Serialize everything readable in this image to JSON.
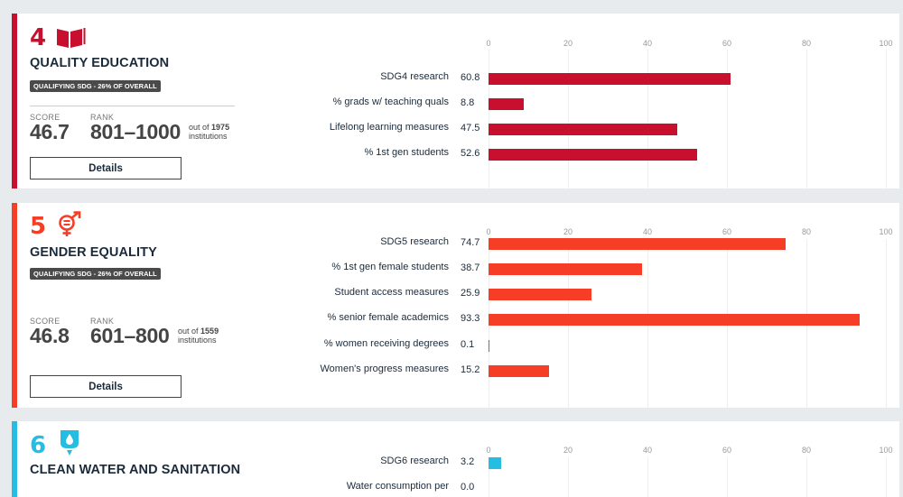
{
  "cards": [
    {
      "number": "4",
      "title": "QUALITY EDUCATION",
      "qualifying": "QUALIFYING SDG - 26% OF OVERALL",
      "score_label": "SCORE",
      "score": "46.7",
      "rank_label": "RANK",
      "rank": "801–1000",
      "out_of_prefix": "out of",
      "out_of_count": "1975",
      "out_of_suffix": "institutions",
      "details": "Details",
      "color": "#c8102e",
      "icon": "open-book-icon"
    },
    {
      "number": "5",
      "title": "GENDER EQUALITY",
      "qualifying": "QUALIFYING SDG - 26% OF OVERALL",
      "score_label": "SCORE",
      "score": "46.8",
      "rank_label": "RANK",
      "rank": "601–800",
      "out_of_prefix": "out of",
      "out_of_count": "1559",
      "out_of_suffix": "institutions",
      "details": "Details",
      "color": "#f53e25",
      "icon": "gender-equality-icon"
    },
    {
      "number": "6",
      "title": "CLEAN WATER AND SANITATION",
      "color": "#26bde2",
      "icon": "water-drop-icon"
    }
  ],
  "chart_data": [
    {
      "type": "bar",
      "orientation": "horizontal",
      "xlim": [
        0,
        100
      ],
      "ticks": [
        0,
        20,
        40,
        60,
        80,
        100
      ],
      "color": "#c8102e",
      "categories": [
        "SDG4 research",
        "% grads w/ teaching quals",
        "Lifelong learning measures",
        "% 1st gen students"
      ],
      "values": [
        60.8,
        8.8,
        47.5,
        52.6
      ],
      "value_labels": [
        "60.8",
        "8.8",
        "47.5",
        "52.6"
      ]
    },
    {
      "type": "bar",
      "orientation": "horizontal",
      "xlim": [
        0,
        100
      ],
      "ticks": [
        0,
        20,
        40,
        60,
        80,
        100
      ],
      "color": "#f53e25",
      "categories": [
        "SDG5 research",
        "% 1st gen female students",
        "Student access measures",
        "% senior female academics",
        "% women receiving degrees",
        "Women's progress measures"
      ],
      "values": [
        74.7,
        38.7,
        25.9,
        93.3,
        0.1,
        15.2
      ],
      "value_labels": [
        "74.7",
        "38.7",
        "25.9",
        "93.3",
        "0.1",
        "15.2"
      ]
    },
    {
      "type": "bar",
      "orientation": "horizontal",
      "xlim": [
        0,
        100
      ],
      "ticks": [
        0,
        20,
        40,
        60,
        80,
        100
      ],
      "color": "#26bde2",
      "categories": [
        "SDG6 research",
        "Water consumption per"
      ],
      "values": [
        3.2,
        0.0
      ],
      "value_labels": [
        "3.2",
        "0.0"
      ]
    }
  ]
}
